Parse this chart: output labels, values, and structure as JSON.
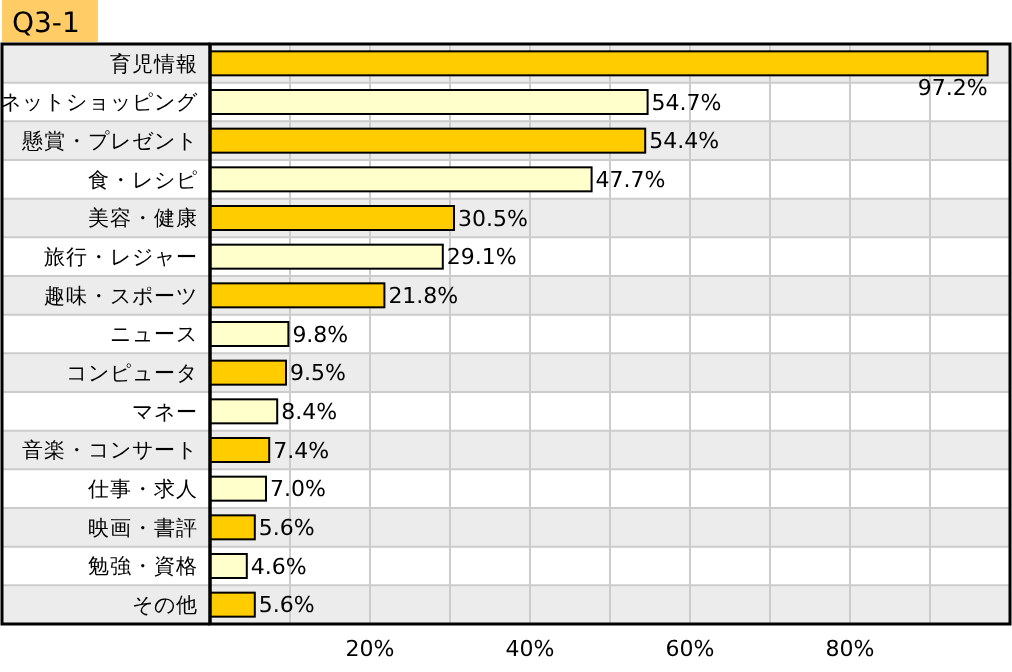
{
  "chart_data": {
    "type": "bar",
    "orientation": "horizontal",
    "title": "Q3-1",
    "categories": [
      "育児情報",
      "ネットショッピング",
      "懸賞・プレゼント",
      "食・レシピ",
      "美容・健康",
      "旅行・レジャー",
      "趣味・スポーツ",
      "ニュース",
      "コンピュータ",
      "マネー",
      "音楽・コンサート",
      "仕事・求人",
      "映画・書評",
      "勉強・資格",
      "その他"
    ],
    "values": [
      97.2,
      54.7,
      54.4,
      47.7,
      30.5,
      29.1,
      21.8,
      9.8,
      9.5,
      8.4,
      7.4,
      7.0,
      5.6,
      4.6,
      5.6
    ],
    "value_labels": [
      "97.2%",
      "54.7%",
      "54.4%",
      "47.7%",
      "30.5%",
      "29.1%",
      "21.8%",
      "9.8%",
      "9.5%",
      "8.4%",
      "7.4%",
      "7.0%",
      "5.6%",
      "4.6%",
      "5.6%"
    ],
    "colors": [
      "#ffcc00",
      "#ffffcc",
      "#ffcc00",
      "#ffffcc",
      "#ffcc00",
      "#ffffcc",
      "#ffcc00",
      "#ffffcc",
      "#ffcc00",
      "#ffffcc",
      "#ffcc00",
      "#ffffcc",
      "#ffcc00",
      "#ffffcc",
      "#ffcc00"
    ],
    "xlim": [
      0,
      100
    ],
    "xticks": [
      {
        "value": 10,
        "label": null
      },
      {
        "value": 20,
        "label": "20%"
      },
      {
        "value": 30,
        "label": null
      },
      {
        "value": 40,
        "label": "40%"
      },
      {
        "value": 50,
        "label": null
      },
      {
        "value": 60,
        "label": "60%"
      },
      {
        "value": 70,
        "label": null
      },
      {
        "value": 80,
        "label": "80%"
      },
      {
        "value": 90,
        "label": null
      }
    ],
    "grid": "x"
  }
}
